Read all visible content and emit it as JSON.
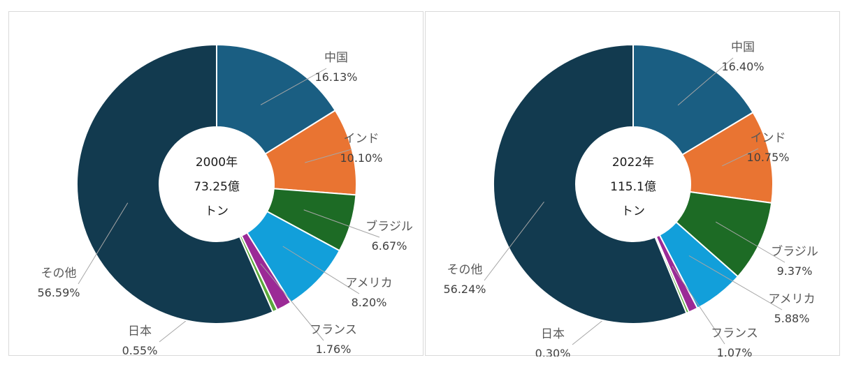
{
  "chart_data": [
    {
      "type": "pie",
      "center_label": [
        "2000年",
        "73.25億",
        "トン"
      ],
      "slices": [
        {
          "label": "中国",
          "value": 16.13,
          "value_text": "16.13%",
          "color": "#1a5e82"
        },
        {
          "label": "インド",
          "value": 10.1,
          "value_text": "10.10%",
          "color": "#e97432"
        },
        {
          "label": "ブラジル",
          "value": 6.67,
          "value_text": "6.67%",
          "color": "#1d6b25"
        },
        {
          "label": "アメリカ",
          "value": 8.2,
          "value_text": "8.20%",
          "color": "#129fda"
        },
        {
          "label": "フランス",
          "value": 1.76,
          "value_text": "1.76%",
          "color": "#9b2a96"
        },
        {
          "label": "日本",
          "value": 0.55,
          "value_text": "0.55%",
          "color": "#5aa83a"
        },
        {
          "label": "その他",
          "value": 56.59,
          "value_text": "56.59%",
          "color": "#123a4f"
        }
      ]
    },
    {
      "type": "pie",
      "center_label": [
        "2022年",
        "115.1億",
        "トン"
      ],
      "slices": [
        {
          "label": "中国",
          "value": 16.4,
          "value_text": "16.40%",
          "color": "#1a5e82"
        },
        {
          "label": "インド",
          "value": 10.75,
          "value_text": "10.75%",
          "color": "#e97432"
        },
        {
          "label": "ブラジル",
          "value": 9.37,
          "value_text": "9.37%",
          "color": "#1d6b25"
        },
        {
          "label": "アメリカ",
          "value": 5.88,
          "value_text": "5.88%",
          "color": "#129fda"
        },
        {
          "label": "フランス",
          "value": 1.07,
          "value_text": "1.07%",
          "color": "#9b2a96"
        },
        {
          "label": "日本",
          "value": 0.3,
          "value_text": "0.30%",
          "color": "#5aa83a"
        },
        {
          "label": "その他",
          "value": 56.24,
          "value_text": "56.24%",
          "color": "#123a4f"
        }
      ]
    }
  ]
}
